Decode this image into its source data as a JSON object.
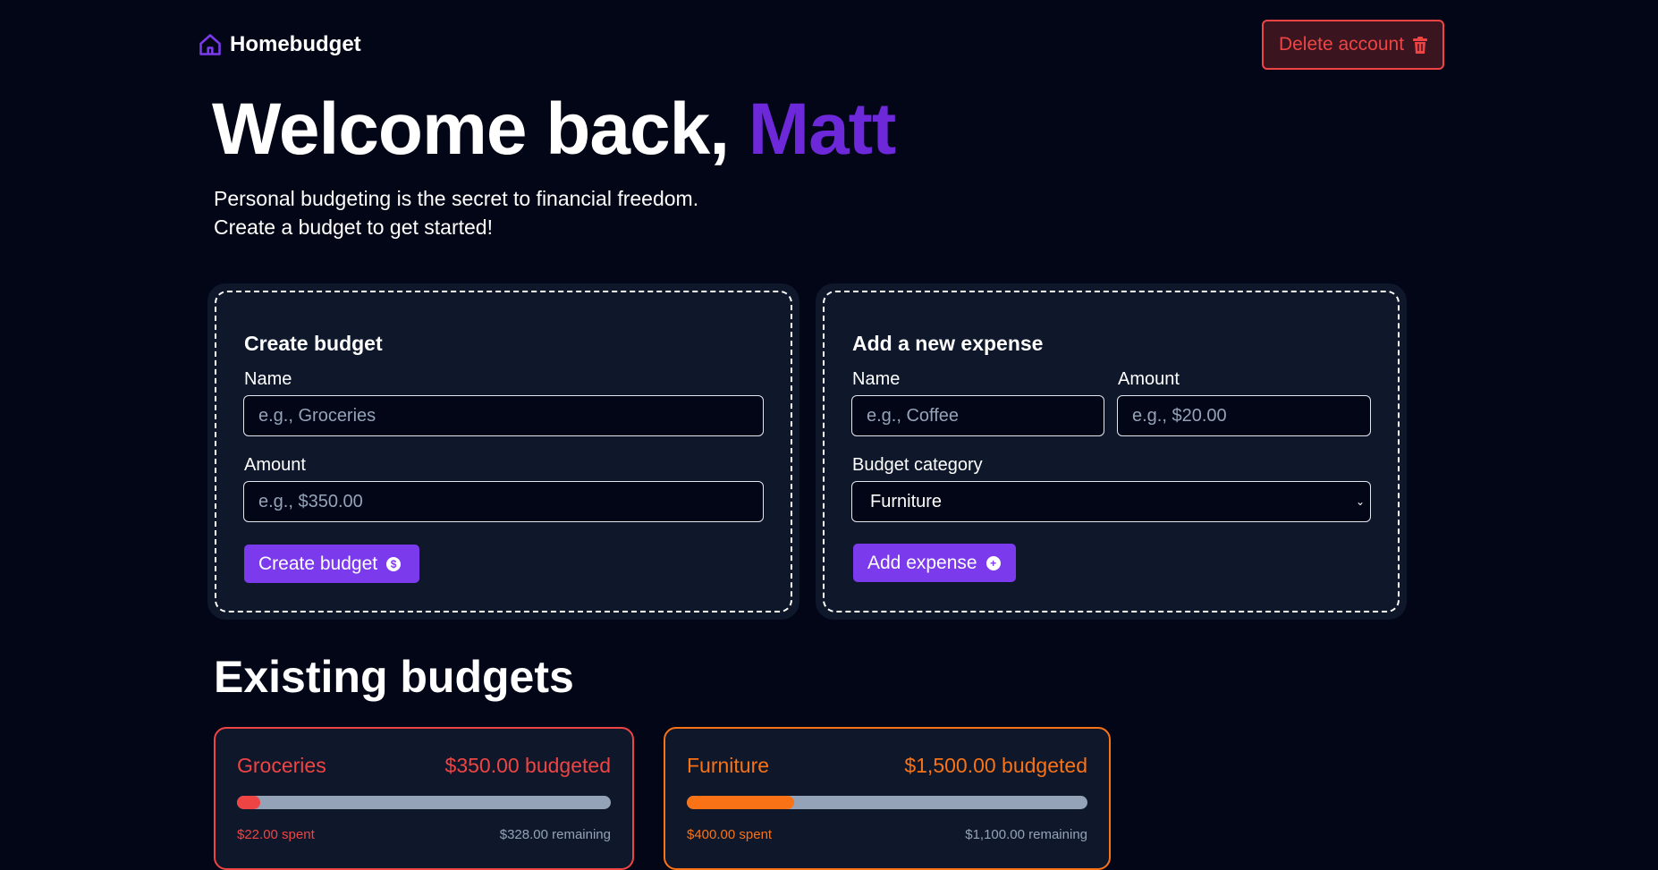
{
  "header": {
    "brand": "Homebudget",
    "delete_label": "Delete account"
  },
  "hero": {
    "greeting": "Welcome back, ",
    "user_name": "Matt",
    "line1": "Personal budgeting is the secret to financial freedom.",
    "line2": "Create a budget to get started!"
  },
  "create_budget": {
    "title": "Create budget",
    "name_label": "Name",
    "name_placeholder": "e.g., Groceries",
    "amount_label": "Amount",
    "amount_placeholder": "e.g., $350.00",
    "button": "Create budget"
  },
  "add_expense": {
    "title": "Add a new expense",
    "name_label": "Name",
    "name_placeholder": "e.g., Coffee",
    "amount_label": "Amount",
    "amount_placeholder": "e.g., $20.00",
    "category_label": "Budget category",
    "category_selected": "Furniture",
    "button": "Add expense"
  },
  "budgets": {
    "title": "Existing budgets",
    "items": [
      {
        "name": "Groceries",
        "budgeted": "$350.00 budgeted",
        "spent": "$22.00 spent",
        "remaining": "$328.00 remaining",
        "progress": 0.063,
        "color": "#ef4444"
      },
      {
        "name": "Furniture",
        "budgeted": "$1,500.00 budgeted",
        "spent": "$400.00 spent",
        "remaining": "$1,100.00 remaining",
        "progress": 0.267,
        "color": "#f97316"
      }
    ]
  },
  "colors": {
    "accent": "#7c3aed",
    "name_accent": "#6d28d9",
    "danger": "#ef4444",
    "background": "#030617",
    "card": "#0f172a"
  }
}
